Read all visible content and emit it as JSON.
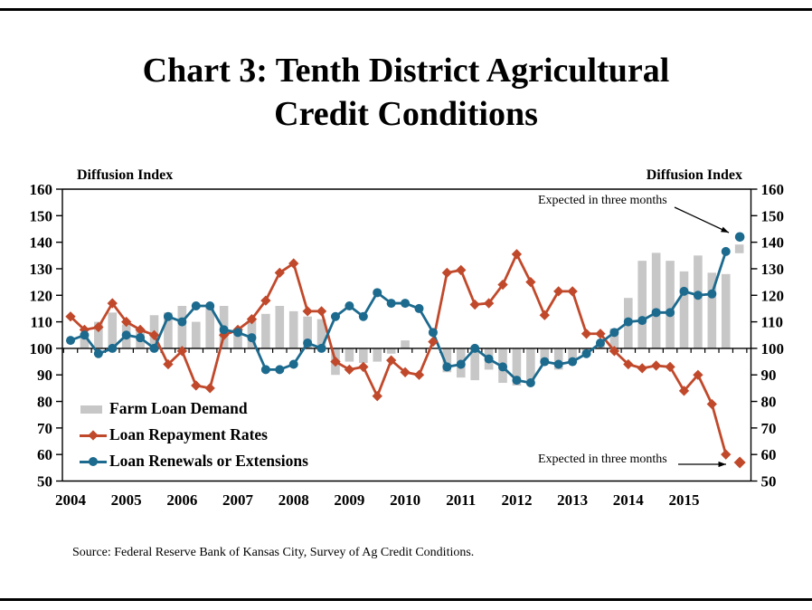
{
  "page": {
    "title_line1": "Chart 3: Tenth District Agricultural",
    "title_line2": "Credit Conditions",
    "source": "Source: Federal Reserve Bank of Kansas City, Survey of Ag Credit Conditions."
  },
  "axes": {
    "left_label": "Diffusion Index",
    "right_label": "Diffusion Index"
  },
  "annotations": {
    "expected_top": "Expected in three months",
    "expected_bottom": "Expected in three months"
  },
  "legend": {
    "bar_label": "Farm Loan Demand",
    "repay_label": "Loan Repayment Rates",
    "renew_label": "Loan Renewals or Extensions"
  },
  "chart_data": {
    "type": "bar",
    "subtype": "combo-bar-and-lines",
    "title": "Chart 3: Tenth District Agricultural Credit Conditions",
    "ylabel": "Diffusion Index",
    "ylim": [
      50,
      160
    ],
    "ystep": 10,
    "baseline": 100,
    "grid": false,
    "years": [
      2004,
      2005,
      2006,
      2007,
      2008,
      2009,
      2010,
      2011,
      2012,
      2013,
      2014,
      2015
    ],
    "quarters_per_year": 4,
    "series": [
      {
        "name": "Farm Loan Demand",
        "type": "bar",
        "color": "#c7c7c7",
        "values": [
          100,
          105,
          110,
          113.5,
          109,
          106.5,
          112.5,
          113.5,
          116,
          110,
          116.5,
          116,
          106,
          111,
          113,
          116,
          114,
          112,
          111,
          90,
          95,
          94.5,
          95,
          98,
          103,
          100,
          100,
          91,
          89,
          88,
          92,
          87,
          86,
          88,
          94,
          92,
          95,
          99,
          102,
          107.5,
          119,
          133,
          136,
          133,
          129,
          135,
          128.5,
          128
        ],
        "expected_in_three_months": 137.5
      },
      {
        "name": "Loan Repayment Rates",
        "type": "line",
        "marker": "diamond",
        "color": "#c1492b",
        "values": [
          112,
          107,
          108,
          117,
          110,
          107,
          105,
          94,
          99,
          86,
          85,
          105,
          107,
          111,
          118,
          128.5,
          132,
          114,
          114,
          95,
          92,
          93,
          82,
          95.5,
          91,
          90,
          102.5,
          128.5,
          129.5,
          116.5,
          117,
          124,
          135.5,
          125,
          112.5,
          121.5,
          121.5,
          105.5,
          105.5,
          99,
          94,
          92.5,
          93.5,
          93,
          84,
          90,
          79,
          60
        ],
        "expected_in_three_months": 57
      },
      {
        "name": "Loan Renewals or Extensions",
        "type": "line",
        "marker": "circle",
        "color": "#1c6a8e",
        "values": [
          103,
          105,
          98,
          100,
          105,
          104,
          100,
          112,
          110,
          116,
          116,
          107,
          106,
          104,
          92,
          92,
          94,
          102,
          100,
          112,
          116,
          112,
          121,
          117,
          117,
          115,
          106,
          93,
          94,
          100,
          96,
          93,
          88,
          87,
          95,
          94,
          95,
          98,
          102,
          106,
          110,
          110.5,
          113.5,
          113.5,
          121.5,
          120,
          120.5,
          136.5
        ],
        "expected_in_three_months": 142
      }
    ]
  }
}
